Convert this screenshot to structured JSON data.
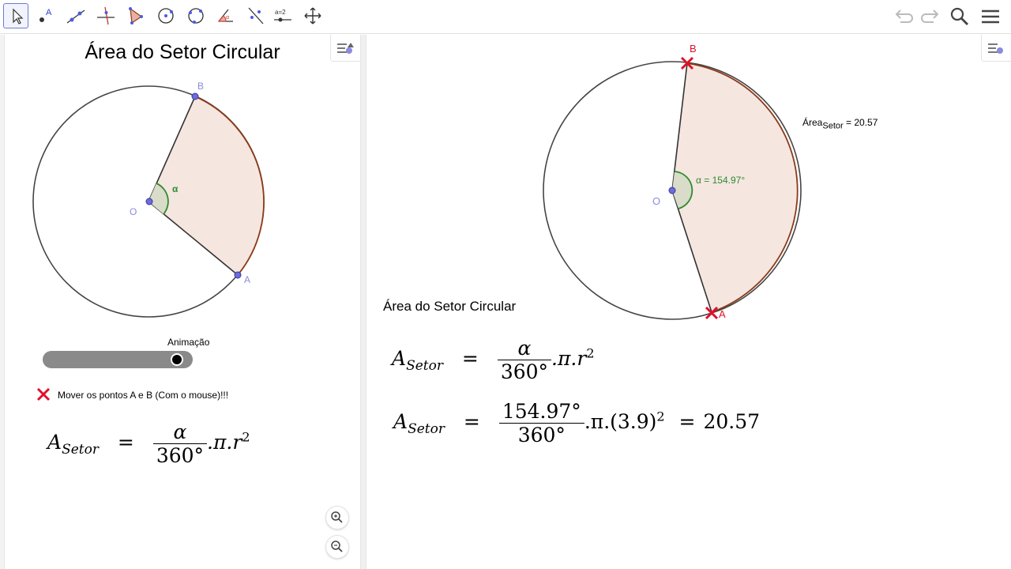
{
  "toolbar": {
    "tools": [
      {
        "name": "move-tool",
        "icon": "cursor-arrow-icon"
      },
      {
        "name": "point-tool",
        "icon": "point-icon",
        "label": "A"
      },
      {
        "name": "line-tool",
        "icon": "line-icon"
      },
      {
        "name": "perpendicular-tool",
        "icon": "perpendicular-icon"
      },
      {
        "name": "polygon-tool",
        "icon": "polygon-icon"
      },
      {
        "name": "circle-tool",
        "icon": "circle-icon"
      },
      {
        "name": "conic-tool",
        "icon": "circle-three-points-icon"
      },
      {
        "name": "angle-tool",
        "icon": "angle-icon",
        "label": "α"
      },
      {
        "name": "reflect-tool",
        "icon": "reflect-icon"
      },
      {
        "name": "slider-tool",
        "icon": "slider-icon",
        "label": "a=2"
      },
      {
        "name": "move-graphics-tool",
        "icon": "move-view-icon"
      }
    ],
    "right": [
      "undo-icon",
      "redo-icon",
      "search-icon",
      "menu-icon"
    ]
  },
  "left": {
    "title": "Área do Setor Circular",
    "point_b": "B",
    "point_a": "A",
    "point_o": "O",
    "angle_label": "α",
    "slider_label": "Animação",
    "instruction": "Mover os pontos A e B (Com o mouse)!!!",
    "formula": {
      "lhs": "A",
      "lhs_sub": "Setor",
      "eq": "=",
      "num": "α",
      "den": "360°",
      "tail": ".π.r",
      "exp": "2"
    }
  },
  "right": {
    "point_b": "B",
    "point_a": "A",
    "point_o": "O",
    "angle_label": "α = 154.97°",
    "area_label": "Área",
    "area_sub": "Setor",
    "area_value": " = 20.57",
    "heading": "Área do Setor Circular",
    "formula1": {
      "lhs": "A",
      "lhs_sub": "Setor",
      "eq": "=",
      "num": "α",
      "den": "360°",
      "tail": ".π.r",
      "exp": "2"
    },
    "formula2": {
      "lhs": "A",
      "lhs_sub": "Setor",
      "eq": "=",
      "num": "154.97°",
      "den": "360°",
      "tail": ".π.(3.9)",
      "exp": "2",
      "eq2": "=",
      "result": "20.57"
    }
  },
  "colors": {
    "sector_fill": "#f5e6e0",
    "arc": "#8b3a1a",
    "angle": "#2e8b2e",
    "point": "#6b6bdb",
    "cross": "#e0102a",
    "accent": "#6b7bd6"
  }
}
